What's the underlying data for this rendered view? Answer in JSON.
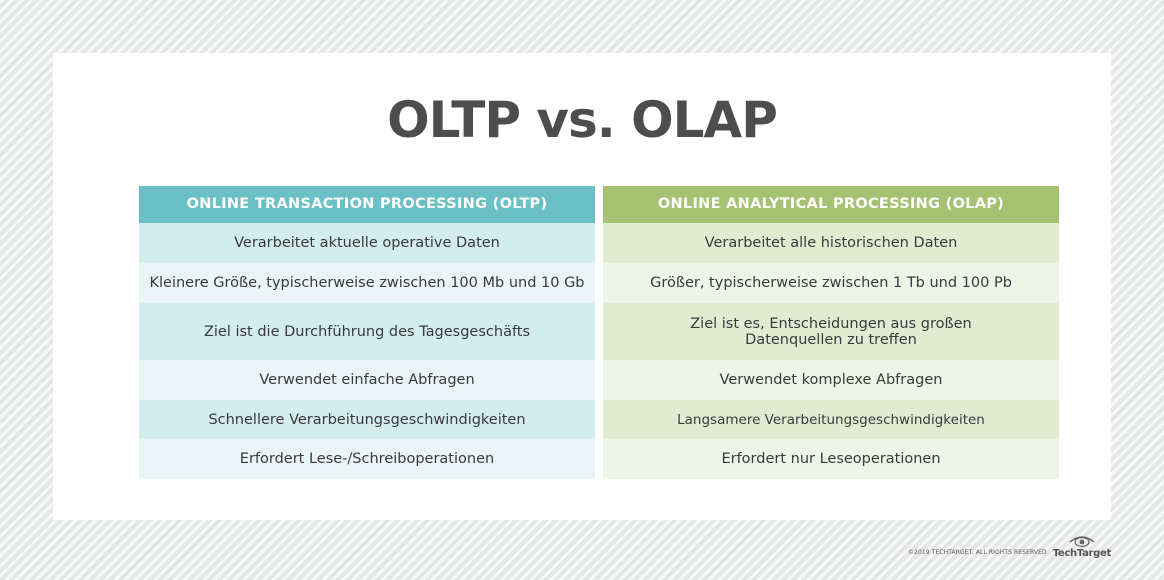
{
  "title": "OLTP vs. OLAP",
  "oltp": {
    "header": "ONLINE TRANSACTION PROCESSING (OLTP)",
    "rows": [
      "Verarbeitet aktuelle operative Daten",
      "Kleinere Größe, typischerweise zwischen 100 Mb und 10 Gb",
      "Ziel ist die Durchführung des Tagesgeschäfts",
      "Verwendet einfache Abfragen",
      "Schnellere Verarbeitungsgeschwindigkeiten",
      "Erfordert Lese-/Schreiboperationen"
    ]
  },
  "olap": {
    "header": "ONLINE ANALYTICAL PROCESSING (OLAP)",
    "rows": [
      "Verarbeitet alle historischen Daten",
      "Größer, typischerweise zwischen 1 Tb und 100 Pb",
      "Ziel ist es, Entscheidungen aus großen Datenquellen zu treffen",
      "Verwendet komplexe Abfragen",
      "Langsamere Verarbeitungsgeschwindigkeiten",
      "Erfordert nur Leseoperationen"
    ]
  },
  "footer": {
    "copyright": "©2019 TECHTARGET. ALL RIGHTS RESERVED",
    "logo_text": "TechTarget",
    "logo_icon": "eye-icon"
  },
  "colors": {
    "oltp_header": "#6bc0c6",
    "olap_header": "#a4c272",
    "title": "#4d4d4f"
  }
}
